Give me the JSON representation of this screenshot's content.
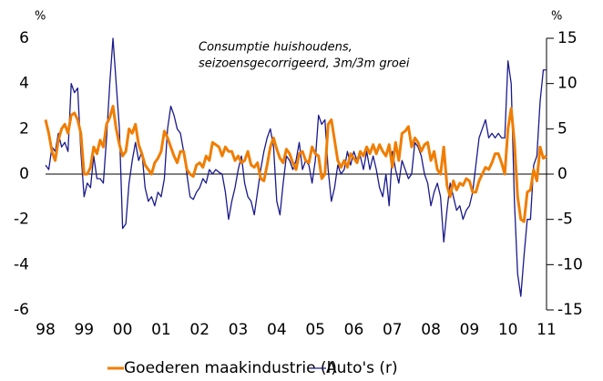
{
  "chart_data": {
    "type": "line",
    "annotation": "Consumptie huishoudens, seizoensgecorrigeerd, 3m/3m groei",
    "annotation_lines": [
      "Consumptie huishoudens,",
      "seizoensgecorrigeerd, 3m/3m groei"
    ],
    "ylabel": "%",
    "y2label": "%",
    "categories": [
      "98",
      null,
      null,
      null,
      null,
      null,
      null,
      null,
      null,
      null,
      null,
      null,
      "99",
      null,
      null,
      null,
      null,
      null,
      null,
      null,
      null,
      null,
      null,
      null,
      "00",
      null,
      null,
      null,
      null,
      null,
      null,
      null,
      null,
      null,
      null,
      null,
      "01",
      null,
      null,
      null,
      null,
      null,
      null,
      null,
      null,
      null,
      null,
      null,
      "02",
      null,
      null,
      null,
      null,
      null,
      null,
      null,
      null,
      null,
      null,
      null,
      "03",
      null,
      null,
      null,
      null,
      null,
      null,
      null,
      null,
      null,
      null,
      null,
      "04",
      null,
      null,
      null,
      null,
      null,
      null,
      null,
      null,
      null,
      null,
      null,
      "05",
      null,
      null,
      null,
      null,
      null,
      null,
      null,
      null,
      null,
      null,
      null,
      "06",
      null,
      null,
      null,
      null,
      null,
      null,
      null,
      null,
      null,
      null,
      null,
      "07",
      null,
      null,
      null,
      null,
      null,
      null,
      null,
      null,
      null,
      null,
      null,
      "08",
      null,
      null,
      null,
      null,
      null,
      null,
      null,
      null,
      null,
      null,
      null,
      "09",
      null,
      null,
      null,
      null,
      null,
      null,
      null,
      null,
      null,
      null,
      null,
      "10",
      null,
      null,
      null,
      null,
      null,
      null,
      null,
      null,
      null,
      null,
      null,
      "11"
    ],
    "series": [
      {
        "name": "Goederen maakindustrie (l)",
        "color": "#f07d00",
        "axis": "y",
        "values": [
          2.4,
          1.8,
          1.0,
          0.6,
          1.5,
          2.0,
          2.2,
          1.8,
          2.6,
          2.7,
          2.4,
          1.8,
          0.0,
          0.0,
          0.3,
          1.2,
          0.9,
          1.5,
          1.2,
          2.2,
          2.5,
          3.0,
          2.0,
          1.3,
          0.8,
          1.0,
          2.0,
          1.8,
          2.2,
          1.3,
          0.9,
          0.4,
          0.2,
          0.0,
          0.5,
          0.7,
          1.0,
          1.9,
          1.6,
          1.2,
          0.8,
          0.5,
          1.0,
          1.0,
          0.2,
          0.0,
          -0.1,
          0.4,
          0.5,
          0.3,
          0.8,
          0.6,
          1.4,
          1.3,
          1.2,
          0.8,
          1.2,
          1.0,
          1.0,
          0.6,
          0.8,
          0.5,
          0.6,
          1.0,
          0.4,
          0.3,
          0.5,
          -0.2,
          -0.3,
          0.4,
          1.2,
          1.6,
          1.1,
          0.7,
          0.5,
          1.1,
          0.9,
          0.5,
          0.2,
          0.9,
          1.0,
          0.6,
          0.5,
          1.2,
          0.9,
          0.8,
          -0.2,
          0.0,
          2.2,
          2.4,
          1.5,
          0.6,
          0.3,
          0.6,
          0.3,
          0.9,
          0.7,
          0.5,
          1.0,
          0.8,
          1.2,
          0.9,
          1.3,
          0.9,
          1.3,
          1.0,
          0.8,
          1.3,
          0.3,
          1.4,
          0.6,
          1.8,
          1.9,
          2.1,
          1.2,
          1.6,
          1.4,
          1.0,
          1.3,
          1.4,
          0.6,
          1.0,
          0.2,
          0.0,
          1.2,
          -0.5,
          -1.0,
          -0.3,
          -0.7,
          -0.4,
          -0.5,
          -0.2,
          -0.3,
          -0.8,
          -0.8,
          -0.3,
          0.0,
          0.3,
          0.2,
          0.5,
          0.9,
          0.9,
          0.5,
          0.0,
          2.0,
          2.9,
          1.4,
          -1.0,
          -2.0,
          -2.1,
          -0.8,
          -0.7,
          0.2,
          -0.3,
          1.2,
          0.7,
          0.8
        ]
      },
      {
        "name": "Auto's (r)",
        "color": "#1a1a8c",
        "axis": "y2",
        "values": [
          1.0,
          0.5,
          3.0,
          2.5,
          4.5,
          3.0,
          3.5,
          2.5,
          10.0,
          9.0,
          9.5,
          2.5,
          -2.5,
          -1.0,
          -1.5,
          2.0,
          -0.5,
          -0.5,
          -1.0,
          4.0,
          10.0,
          15.0,
          10.0,
          5.0,
          -6.0,
          -5.5,
          -1.0,
          1.5,
          3.5,
          1.5,
          2.5,
          -1.5,
          -3.0,
          -2.5,
          -3.5,
          -2.0,
          -2.5,
          -0.5,
          5.0,
          7.5,
          6.5,
          5.0,
          4.5,
          2.5,
          0.0,
          -2.5,
          -2.8,
          -2.0,
          -1.5,
          -0.5,
          -1.0,
          0.5,
          0.0,
          0.5,
          0.2,
          0.0,
          -2.0,
          -5.0,
          -3.0,
          -1.5,
          0.5,
          2.0,
          -1.0,
          -2.5,
          -3.0,
          -4.5,
          -2.0,
          0.5,
          2.5,
          4.0,
          5.0,
          3.0,
          -3.0,
          -4.5,
          -1.0,
          2.0,
          1.5,
          0.5,
          1.5,
          3.5,
          0.5,
          1.5,
          1.0,
          -1.0,
          1.5,
          6.5,
          5.5,
          6.0,
          0.5,
          -3.0,
          -1.5,
          1.0,
          0.0,
          0.5,
          2.5,
          1.0,
          2.5,
          1.5,
          2.0,
          0.5,
          2.5,
          0.5,
          2.0,
          0.5,
          -1.5,
          -2.5,
          0.0,
          -3.5,
          2.5,
          0.5,
          -1.0,
          1.5,
          0.5,
          -0.5,
          0.0,
          3.5,
          3.0,
          2.0,
          0.0,
          -1.0,
          -3.5,
          -2.0,
          -1.0,
          -2.5,
          -7.5,
          -4.0,
          -1.0,
          -2.5,
          -4.0,
          -3.5,
          -5.0,
          -4.0,
          -3.5,
          -2.0,
          1.0,
          4.0,
          5.0,
          6.0,
          4.0,
          4.5,
          4.0,
          4.5,
          4.0,
          4.0,
          12.5,
          10.0,
          -3.0,
          -11.0,
          -13.5,
          -9.0,
          -5.0,
          -5.0,
          1.0,
          2.0,
          8.0,
          11.5,
          11.5
        ]
      }
    ],
    "ylim": [
      -6,
      6
    ],
    "yticks": [
      -6,
      -4,
      -2,
      0,
      2,
      4,
      6
    ],
    "y2lim": [
      -15,
      15
    ],
    "y2ticks": [
      -15,
      -10,
      -5,
      0,
      5,
      10,
      15
    ],
    "legend": "bottom"
  }
}
